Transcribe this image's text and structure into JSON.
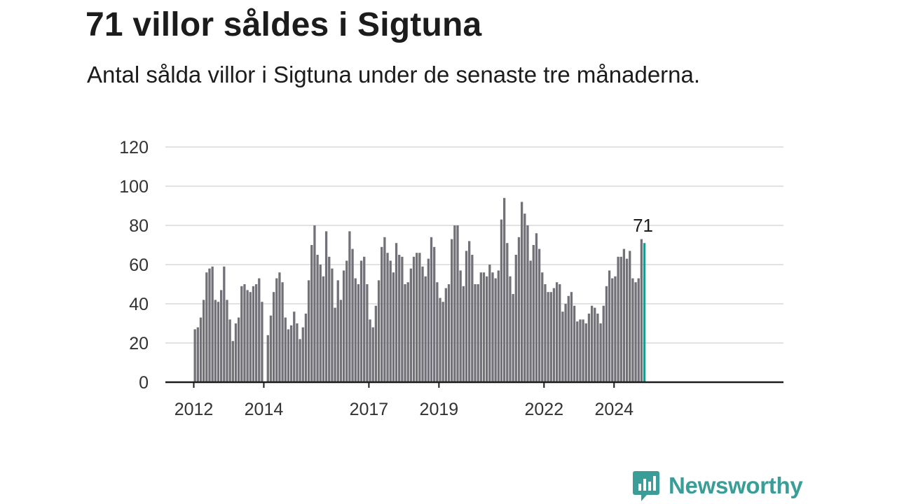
{
  "title": "71 villor såldes i Sigtuna",
  "subtitle": "Antal sålda villor i Sigtuna under de senaste tre månaderna.",
  "brand": {
    "name": "Newsworthy",
    "color": "#3a9d97"
  },
  "colors": {
    "bar": "#737178",
    "highlight": "#1f9a8c",
    "grid": "#d9d9d9",
    "axis": "#1c1c1c"
  },
  "chart_data": {
    "type": "bar",
    "ylim": [
      0,
      120
    ],
    "yticks": [
      0,
      20,
      40,
      60,
      80,
      100,
      120
    ],
    "grid": true,
    "xtick_labels": [
      {
        "label": "2012",
        "index": 0
      },
      {
        "label": "2014",
        "index": 24
      },
      {
        "label": "2017",
        "index": 60
      },
      {
        "label": "2019",
        "index": 84
      },
      {
        "label": "2022",
        "index": 120
      },
      {
        "label": "2024",
        "index": 144
      }
    ],
    "start": "2012-01",
    "values": [
      27,
      28,
      33,
      42,
      56,
      58,
      59,
      42,
      41,
      47,
      59,
      42,
      32,
      21,
      30,
      33,
      49,
      50,
      47,
      46,
      49,
      50,
      53,
      41,
      0,
      24,
      34,
      46,
      53,
      56,
      51,
      33,
      27,
      29,
      36,
      30,
      22,
      28,
      35,
      52,
      70,
      80,
      65,
      60,
      54,
      77,
      64,
      58,
      38,
      52,
      42,
      57,
      62,
      77,
      68,
      53,
      50,
      62,
      64,
      50,
      32,
      28,
      39,
      52,
      69,
      74,
      66,
      62,
      56,
      71,
      65,
      64,
      50,
      51,
      58,
      64,
      66,
      66,
      59,
      54,
      63,
      74,
      69,
      51,
      43,
      41,
      48,
      50,
      73,
      80,
      80,
      57,
      49,
      67,
      72,
      65,
      50,
      50,
      56,
      56,
      54,
      60,
      56,
      53,
      57,
      83,
      94,
      71,
      54,
      45,
      65,
      74,
      92,
      86,
      80,
      62,
      70,
      76,
      68,
      56,
      50,
      46,
      46,
      48,
      51,
      50,
      36,
      40,
      44,
      46,
      39,
      31,
      32,
      32,
      30,
      35,
      39,
      38,
      35,
      30,
      39,
      49,
      57,
      53,
      54,
      64,
      64,
      68,
      63,
      67,
      53,
      51,
      53,
      73,
      71
    ],
    "highlight_label": "71"
  }
}
